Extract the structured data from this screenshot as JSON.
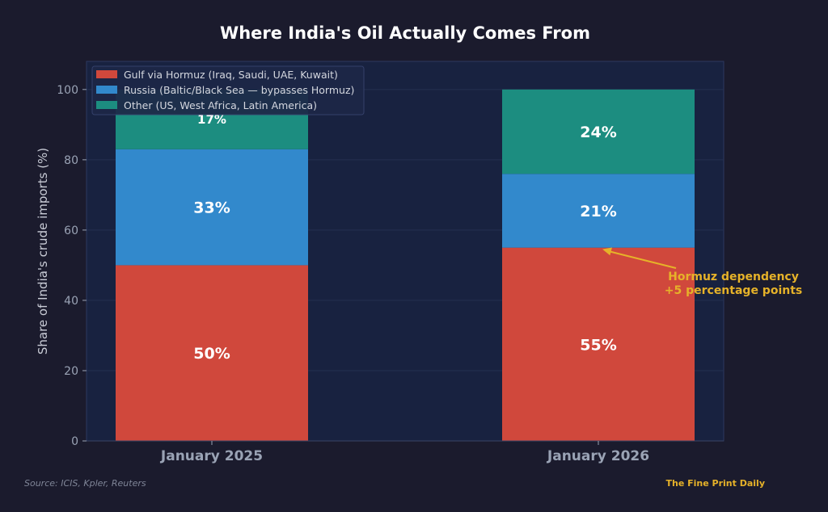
{
  "colors": {
    "background": "#1b1b2d",
    "plot_bg": "#182240",
    "gulf": "#d0483c",
    "russia": "#3289cc",
    "other": "#1c8d80",
    "annotation": "#e6b229",
    "axis_text": "#9aa3b5"
  },
  "chart_data": {
    "type": "bar",
    "stacked": true,
    "title": "Where India's Oil Actually Comes From",
    "ylabel": "Share of India's crude imports (%)",
    "xlabel": "",
    "categories": [
      "January 2025",
      "January 2026"
    ],
    "ylim": [
      0,
      108
    ],
    "yticks": [
      0,
      20,
      40,
      60,
      80,
      100
    ],
    "grid": true,
    "legend_position": "top-left",
    "series": [
      {
        "name": "Gulf via Hormuz (Iraq, Saudi, UAE, Kuwait)",
        "values": [
          50,
          55
        ],
        "labels": [
          "50%",
          "55%"
        ],
        "color": "#d0483c"
      },
      {
        "name": "Russia (Baltic/Black Sea — bypasses Hormuz)",
        "values": [
          33,
          21
        ],
        "labels": [
          "33%",
          "21%"
        ],
        "color": "#3289cc"
      },
      {
        "name": "Other (US, West Africa, Latin America)",
        "values": [
          17,
          24
        ],
        "labels": [
          "17%",
          "24%"
        ],
        "color": "#1c8d80"
      }
    ],
    "annotation": {
      "lines": [
        "Hormuz dependency",
        "+5 percentage points"
      ],
      "points_to": {
        "category": "January 2026",
        "y": 55
      }
    }
  },
  "footer": {
    "source": "Source: ICIS, Kpler, Reuters",
    "brand": "The Fine Print Daily"
  }
}
